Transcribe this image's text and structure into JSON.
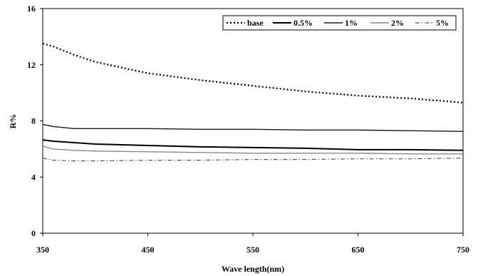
{
  "chart_data": {
    "type": "line",
    "title": "",
    "xlabel": "Wave length(nm)",
    "ylabel": "R%",
    "xlim": [
      350,
      750
    ],
    "ylim": [
      0,
      16
    ],
    "xticks": [
      350,
      450,
      550,
      650,
      750
    ],
    "yticks": [
      0,
      4,
      8,
      12,
      16
    ],
    "grid": false,
    "legend_position": "top-right",
    "series": [
      {
        "name": "base",
        "color": "#000000",
        "style": "dotted",
        "x": [
          350,
          360,
          370,
          380,
          400,
          450,
          500,
          550,
          600,
          650,
          700,
          750
        ],
        "y": [
          13.5,
          13.3,
          13.0,
          12.7,
          12.2,
          11.4,
          10.9,
          10.5,
          10.1,
          9.8,
          9.6,
          9.3
        ]
      },
      {
        "name": "0.5%",
        "color": "#000000",
        "style": "solid-thick",
        "x": [
          350,
          360,
          380,
          400,
          450,
          500,
          550,
          600,
          650,
          700,
          750
        ],
        "y": [
          6.65,
          6.55,
          6.45,
          6.35,
          6.25,
          6.15,
          6.1,
          6.05,
          5.95,
          5.95,
          5.9
        ]
      },
      {
        "name": "1%",
        "color": "#1a1a1a",
        "style": "solid",
        "x": [
          350,
          360,
          380,
          400,
          450,
          500,
          550,
          600,
          650,
          700,
          750
        ],
        "y": [
          7.75,
          7.6,
          7.45,
          7.45,
          7.45,
          7.4,
          7.4,
          7.35,
          7.35,
          7.3,
          7.25
        ]
      },
      {
        "name": "2%",
        "color": "#888888",
        "style": "solid",
        "x": [
          350,
          360,
          380,
          400,
          450,
          500,
          550,
          600,
          650,
          700,
          750
        ],
        "y": [
          6.2,
          6.0,
          5.9,
          5.85,
          5.8,
          5.75,
          5.7,
          5.7,
          5.7,
          5.65,
          5.65
        ]
      },
      {
        "name": "5%",
        "color": "#555555",
        "style": "dashdot",
        "x": [
          350,
          360,
          380,
          400,
          450,
          500,
          550,
          600,
          650,
          700,
          750
        ],
        "y": [
          5.35,
          5.2,
          5.15,
          5.15,
          5.2,
          5.2,
          5.25,
          5.25,
          5.3,
          5.3,
          5.35
        ]
      }
    ]
  }
}
